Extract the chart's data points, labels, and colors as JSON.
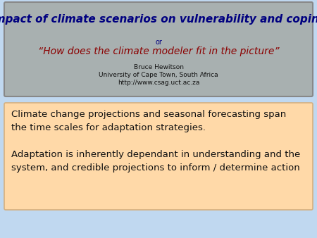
{
  "bg_color": "#c0d8f0",
  "title_box_color": "#a8b0b0",
  "title_box_border": "#888888",
  "title_main": "Impact of climate scenarios on vulnerability and coping",
  "title_or": "or",
  "title_subtitle": "“How does the climate modeler fit in the picture”",
  "title_author": "Bruce Hewitson",
  "title_uni": "University of Cape Town, South Africa",
  "title_url": "http://www.csag.uct.ac.za",
  "title_main_color": "#000080",
  "title_subtitle_color": "#8B0000",
  "title_small_color": "#111111",
  "content_box_color": "#ffd9a8",
  "content_box_border": "#d4b080",
  "content_text": "Climate change projections and seasonal forecasting span\nthe time scales for adaptation strategies.\n\nAdaptation is inherently dependant in understanding and the\nsystem, and credible projections to inform / determine action",
  "content_text_color": "#111111"
}
